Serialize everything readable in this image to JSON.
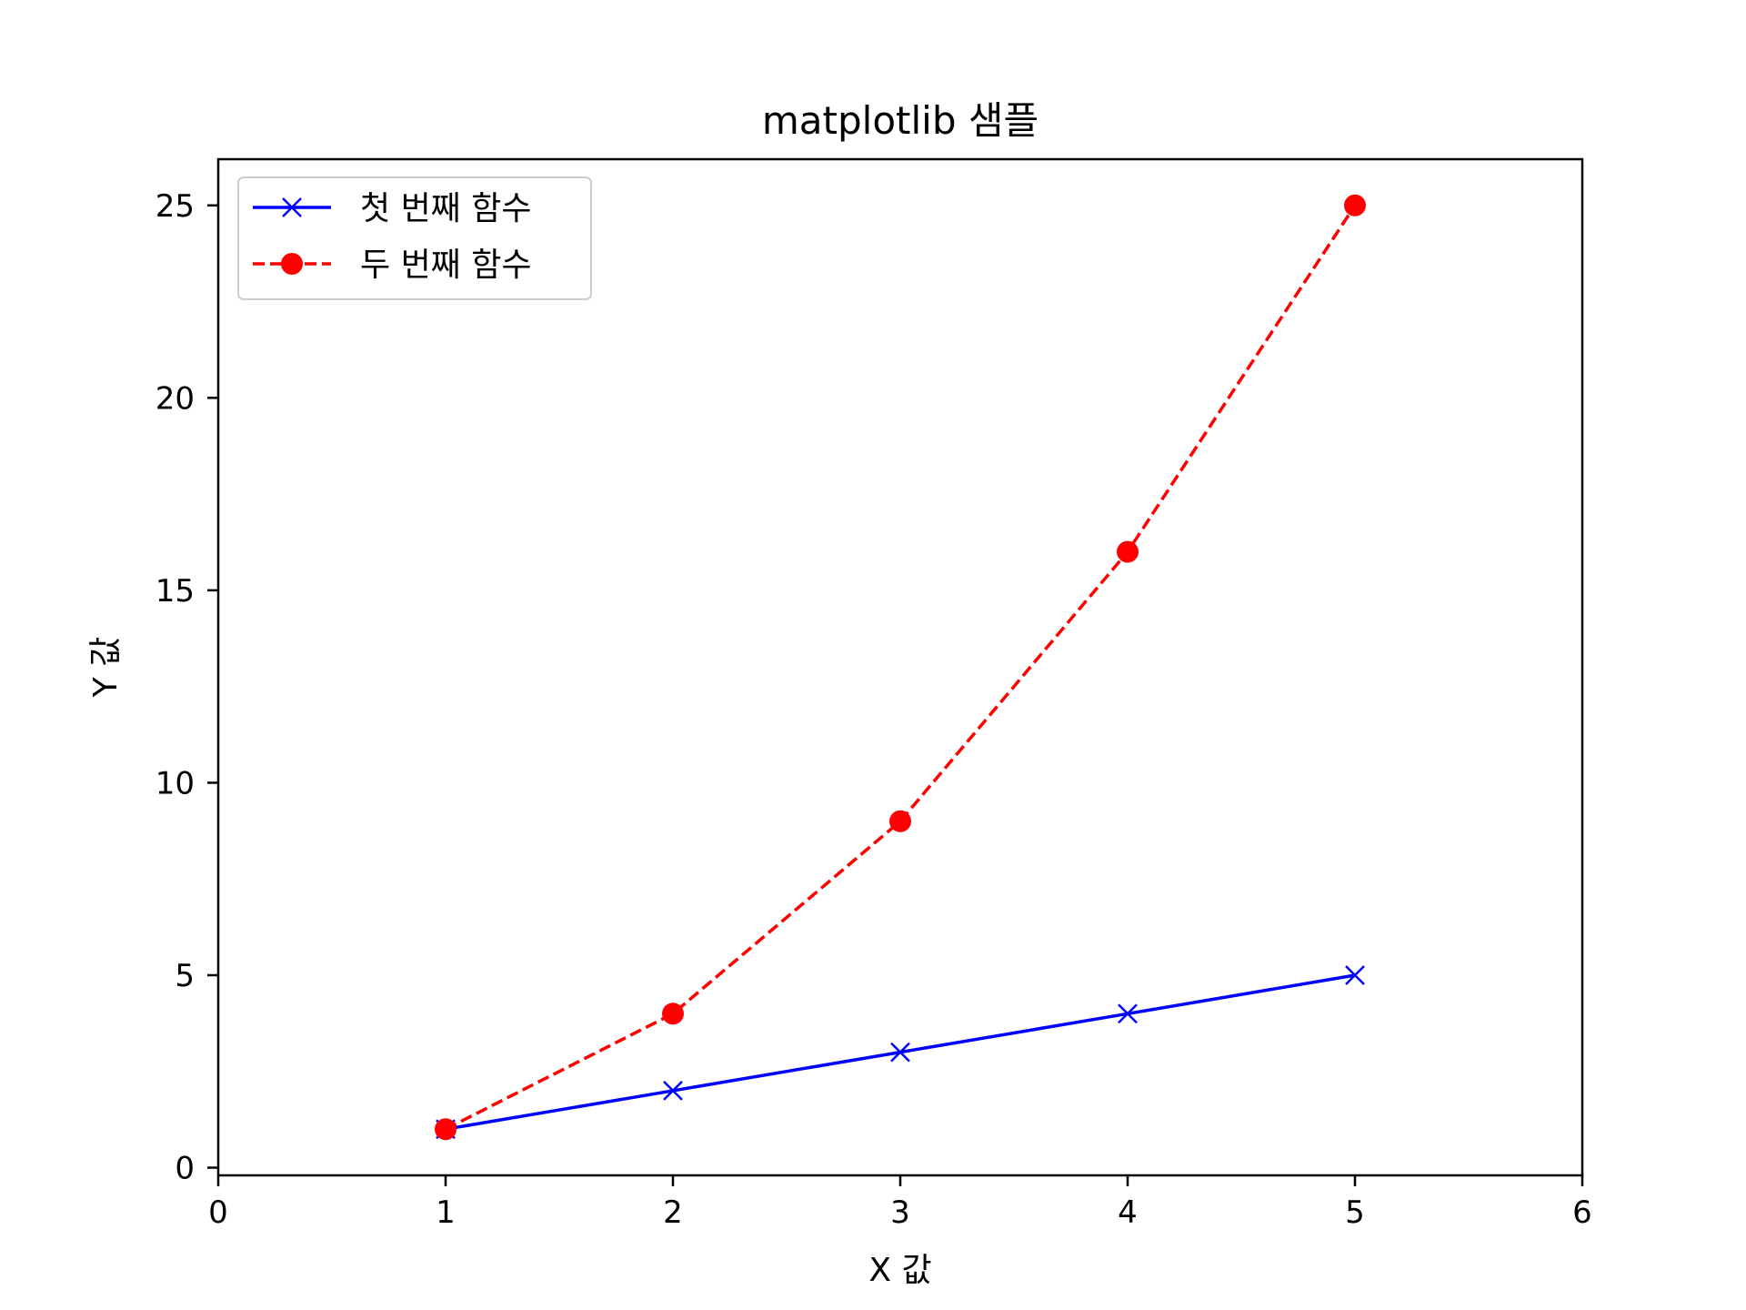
{
  "chart_data": {
    "type": "line",
    "title": "matplotlib 샘플",
    "xlabel": "X 값",
    "ylabel": "Y 값",
    "xlim": [
      0,
      6
    ],
    "ylim": [
      -0.2,
      26.2
    ],
    "xticks": [
      "0",
      "1",
      "2",
      "3",
      "4",
      "5",
      "6"
    ],
    "yticks": [
      "0",
      "5",
      "10",
      "15",
      "20",
      "25"
    ],
    "grid": false,
    "legend_position": "upper-left",
    "series": [
      {
        "name": "첫 번째 함수",
        "x": [
          1,
          2,
          3,
          4,
          5
        ],
        "y": [
          1,
          2,
          3,
          4,
          5
        ],
        "color": "#0000ff",
        "linestyle": "solid",
        "marker": "x"
      },
      {
        "name": "두 번째 함수",
        "x": [
          1,
          2,
          3,
          4,
          5
        ],
        "y": [
          1,
          4,
          9,
          16,
          25
        ],
        "color": "#ff0000",
        "linestyle": "dashed",
        "marker": "o"
      }
    ]
  }
}
